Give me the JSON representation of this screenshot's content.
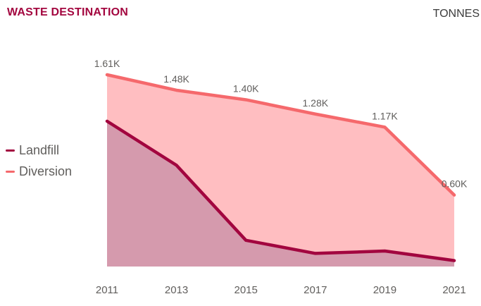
{
  "header": {
    "title": "WASTE DESTINATION",
    "unit_label": "TONNES"
  },
  "legend": {
    "items": [
      {
        "label": "Landfill",
        "color": "#A2063F"
      },
      {
        "label": "Diversion",
        "color": "#F5696C"
      }
    ]
  },
  "chart_data": {
    "type": "area",
    "title": "WASTE DESTINATION",
    "unit": "TONNES",
    "categories": [
      "2011",
      "2013",
      "2015",
      "2017",
      "2019",
      "2021"
    ],
    "series": [
      {
        "name": "Landfill",
        "values": [
          1.22,
          0.85,
          0.22,
          0.11,
          0.13,
          0.05
        ],
        "line_color": "#A2063F",
        "fill_color": "#D59AAD",
        "labels": null
      },
      {
        "name": "Diversion",
        "values": [
          1.61,
          1.48,
          1.4,
          1.28,
          1.17,
          0.6
        ],
        "line_color": "#F5696C",
        "fill_color": "#FFBEC1",
        "labels": [
          "1.61K",
          "1.48K",
          "1.40K",
          "1.28K",
          "1.17K",
          "0.60K"
        ]
      }
    ],
    "ylim": [
      0,
      1.61
    ],
    "grid": false,
    "y_axis_shown": false,
    "legend_position": "left-middle",
    "x_axis_text_color": "#605E5C",
    "data_label_text_color": "#605E5C"
  }
}
